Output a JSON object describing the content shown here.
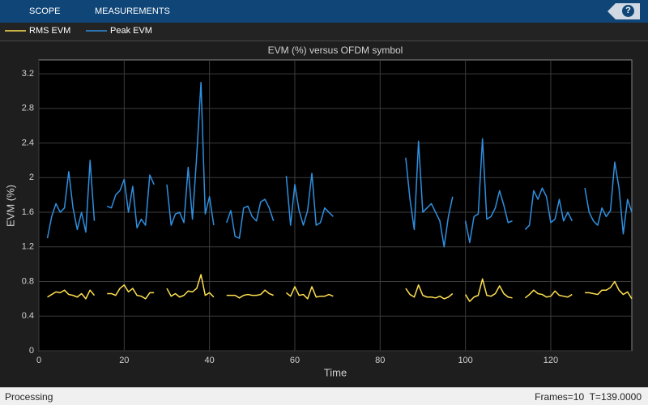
{
  "toolbar": {
    "tabs": [
      "SCOPE",
      "MEASUREMENTS"
    ],
    "help": "?"
  },
  "chart_data": {
    "type": "line",
    "title": "EVM (%) versus OFDM symbol",
    "x_label": "Time",
    "y_label": "EVM (%)",
    "x": [
      2,
      3,
      4,
      5,
      6,
      7,
      8,
      9,
      10,
      11,
      12,
      13,
      14,
      15,
      16,
      17,
      18,
      19,
      20,
      21,
      22,
      23,
      24,
      25,
      26,
      27,
      28,
      29,
      30,
      31,
      32,
      33,
      34,
      35,
      36,
      37,
      38,
      39,
      40,
      41,
      42,
      43,
      44,
      45,
      46,
      47,
      48,
      49,
      50,
      51,
      52,
      53,
      54,
      55,
      56,
      57,
      58,
      59,
      60,
      61,
      62,
      63,
      64,
      65,
      66,
      67,
      68,
      69,
      70,
      71,
      72,
      73,
      74,
      75,
      76,
      77,
      78,
      79,
      80,
      81,
      82,
      83,
      84,
      85,
      86,
      87,
      88,
      89,
      90,
      91,
      92,
      93,
      94,
      95,
      96,
      97,
      98,
      99,
      100,
      101,
      102,
      103,
      104,
      105,
      106,
      107,
      108,
      109,
      110,
      111,
      112,
      113,
      114,
      115,
      116,
      117,
      118,
      119,
      120,
      121,
      122,
      123,
      124,
      125,
      126,
      127,
      128,
      129,
      130,
      131,
      132,
      133,
      134,
      135,
      136,
      137,
      138,
      139
    ],
    "series": [
      {
        "name": "RMS EVM",
        "color": "#ffe04f",
        "values": [
          0.62,
          0.65,
          0.68,
          0.67,
          0.7,
          0.65,
          0.64,
          0.62,
          0.66,
          0.6,
          0.7,
          0.64,
          null,
          null,
          0.66,
          0.66,
          0.64,
          0.72,
          0.76,
          0.68,
          0.72,
          0.64,
          0.63,
          0.6,
          0.67,
          0.67,
          null,
          null,
          0.72,
          0.63,
          0.66,
          0.62,
          0.64,
          0.69,
          0.68,
          0.72,
          0.88,
          0.64,
          0.67,
          0.62,
          null,
          null,
          0.64,
          0.64,
          0.64,
          0.61,
          0.64,
          0.65,
          0.64,
          0.64,
          0.65,
          0.7,
          0.66,
          0.64,
          null,
          null,
          0.67,
          0.63,
          0.74,
          0.64,
          0.65,
          0.6,
          0.74,
          0.62,
          0.63,
          0.63,
          0.65,
          0.63,
          null,
          null,
          null,
          null,
          null,
          null,
          null,
          null,
          null,
          null,
          null,
          null,
          null,
          null,
          null,
          null,
          0.72,
          0.65,
          0.62,
          0.76,
          0.64,
          0.62,
          0.62,
          0.61,
          0.63,
          0.6,
          0.62,
          0.66,
          null,
          null,
          0.65,
          0.57,
          0.62,
          0.64,
          0.83,
          0.64,
          0.63,
          0.66,
          0.75,
          0.66,
          0.62,
          0.61,
          null,
          null,
          0.61,
          0.65,
          0.7,
          0.66,
          0.65,
          0.62,
          0.63,
          0.69,
          0.64,
          0.63,
          0.62,
          0.65,
          null,
          null,
          0.67,
          0.67,
          0.66,
          0.65,
          0.7,
          0.7,
          0.73,
          0.8,
          0.7,
          0.65,
          0.68,
          0.6
        ]
      },
      {
        "name": "Peak EVM",
        "color": "#2f8fe0",
        "values": [
          1.3,
          1.55,
          1.7,
          1.6,
          1.65,
          2.07,
          1.65,
          1.4,
          1.6,
          1.37,
          2.2,
          1.5,
          null,
          null,
          1.67,
          1.65,
          1.8,
          1.85,
          1.98,
          1.6,
          1.9,
          1.42,
          1.52,
          1.45,
          2.03,
          1.92,
          null,
          null,
          1.92,
          1.45,
          1.58,
          1.6,
          1.48,
          2.12,
          1.52,
          2.25,
          3.1,
          1.58,
          1.78,
          1.45,
          null,
          null,
          1.48,
          1.62,
          1.32,
          1.3,
          1.65,
          1.67,
          1.55,
          1.5,
          1.72,
          1.75,
          1.65,
          1.5,
          null,
          null,
          2.02,
          1.45,
          1.92,
          1.62,
          1.45,
          1.62,
          2.05,
          1.45,
          1.48,
          1.65,
          1.6,
          1.55,
          null,
          null,
          null,
          null,
          null,
          null,
          null,
          null,
          null,
          null,
          null,
          null,
          null,
          null,
          null,
          null,
          2.23,
          1.75,
          1.4,
          2.42,
          1.6,
          1.65,
          1.7,
          1.6,
          1.5,
          1.2,
          1.55,
          1.78,
          null,
          null,
          1.5,
          1.25,
          1.55,
          1.58,
          2.45,
          1.52,
          1.55,
          1.65,
          1.85,
          1.68,
          1.48,
          1.5,
          null,
          null,
          1.4,
          1.45,
          1.85,
          1.75,
          1.88,
          1.78,
          1.48,
          1.52,
          1.75,
          1.5,
          1.6,
          1.5,
          null,
          null,
          1.88,
          1.6,
          1.5,
          1.45,
          1.65,
          1.55,
          1.62,
          2.18,
          1.88,
          1.35,
          1.75,
          1.6
        ]
      }
    ],
    "xlim": [
      0,
      139
    ],
    "xticks": [
      0,
      20,
      40,
      60,
      80,
      100,
      120
    ],
    "ylim": [
      0,
      3.36
    ],
    "yticks": [
      0,
      0.4,
      0.8,
      1.2,
      1.6,
      2,
      2.4,
      2.8,
      3.2
    ],
    "grid": true,
    "legend": "top-left"
  },
  "status_bar": {
    "state": "Processing",
    "info": "Frames=10  T=139.0000"
  }
}
